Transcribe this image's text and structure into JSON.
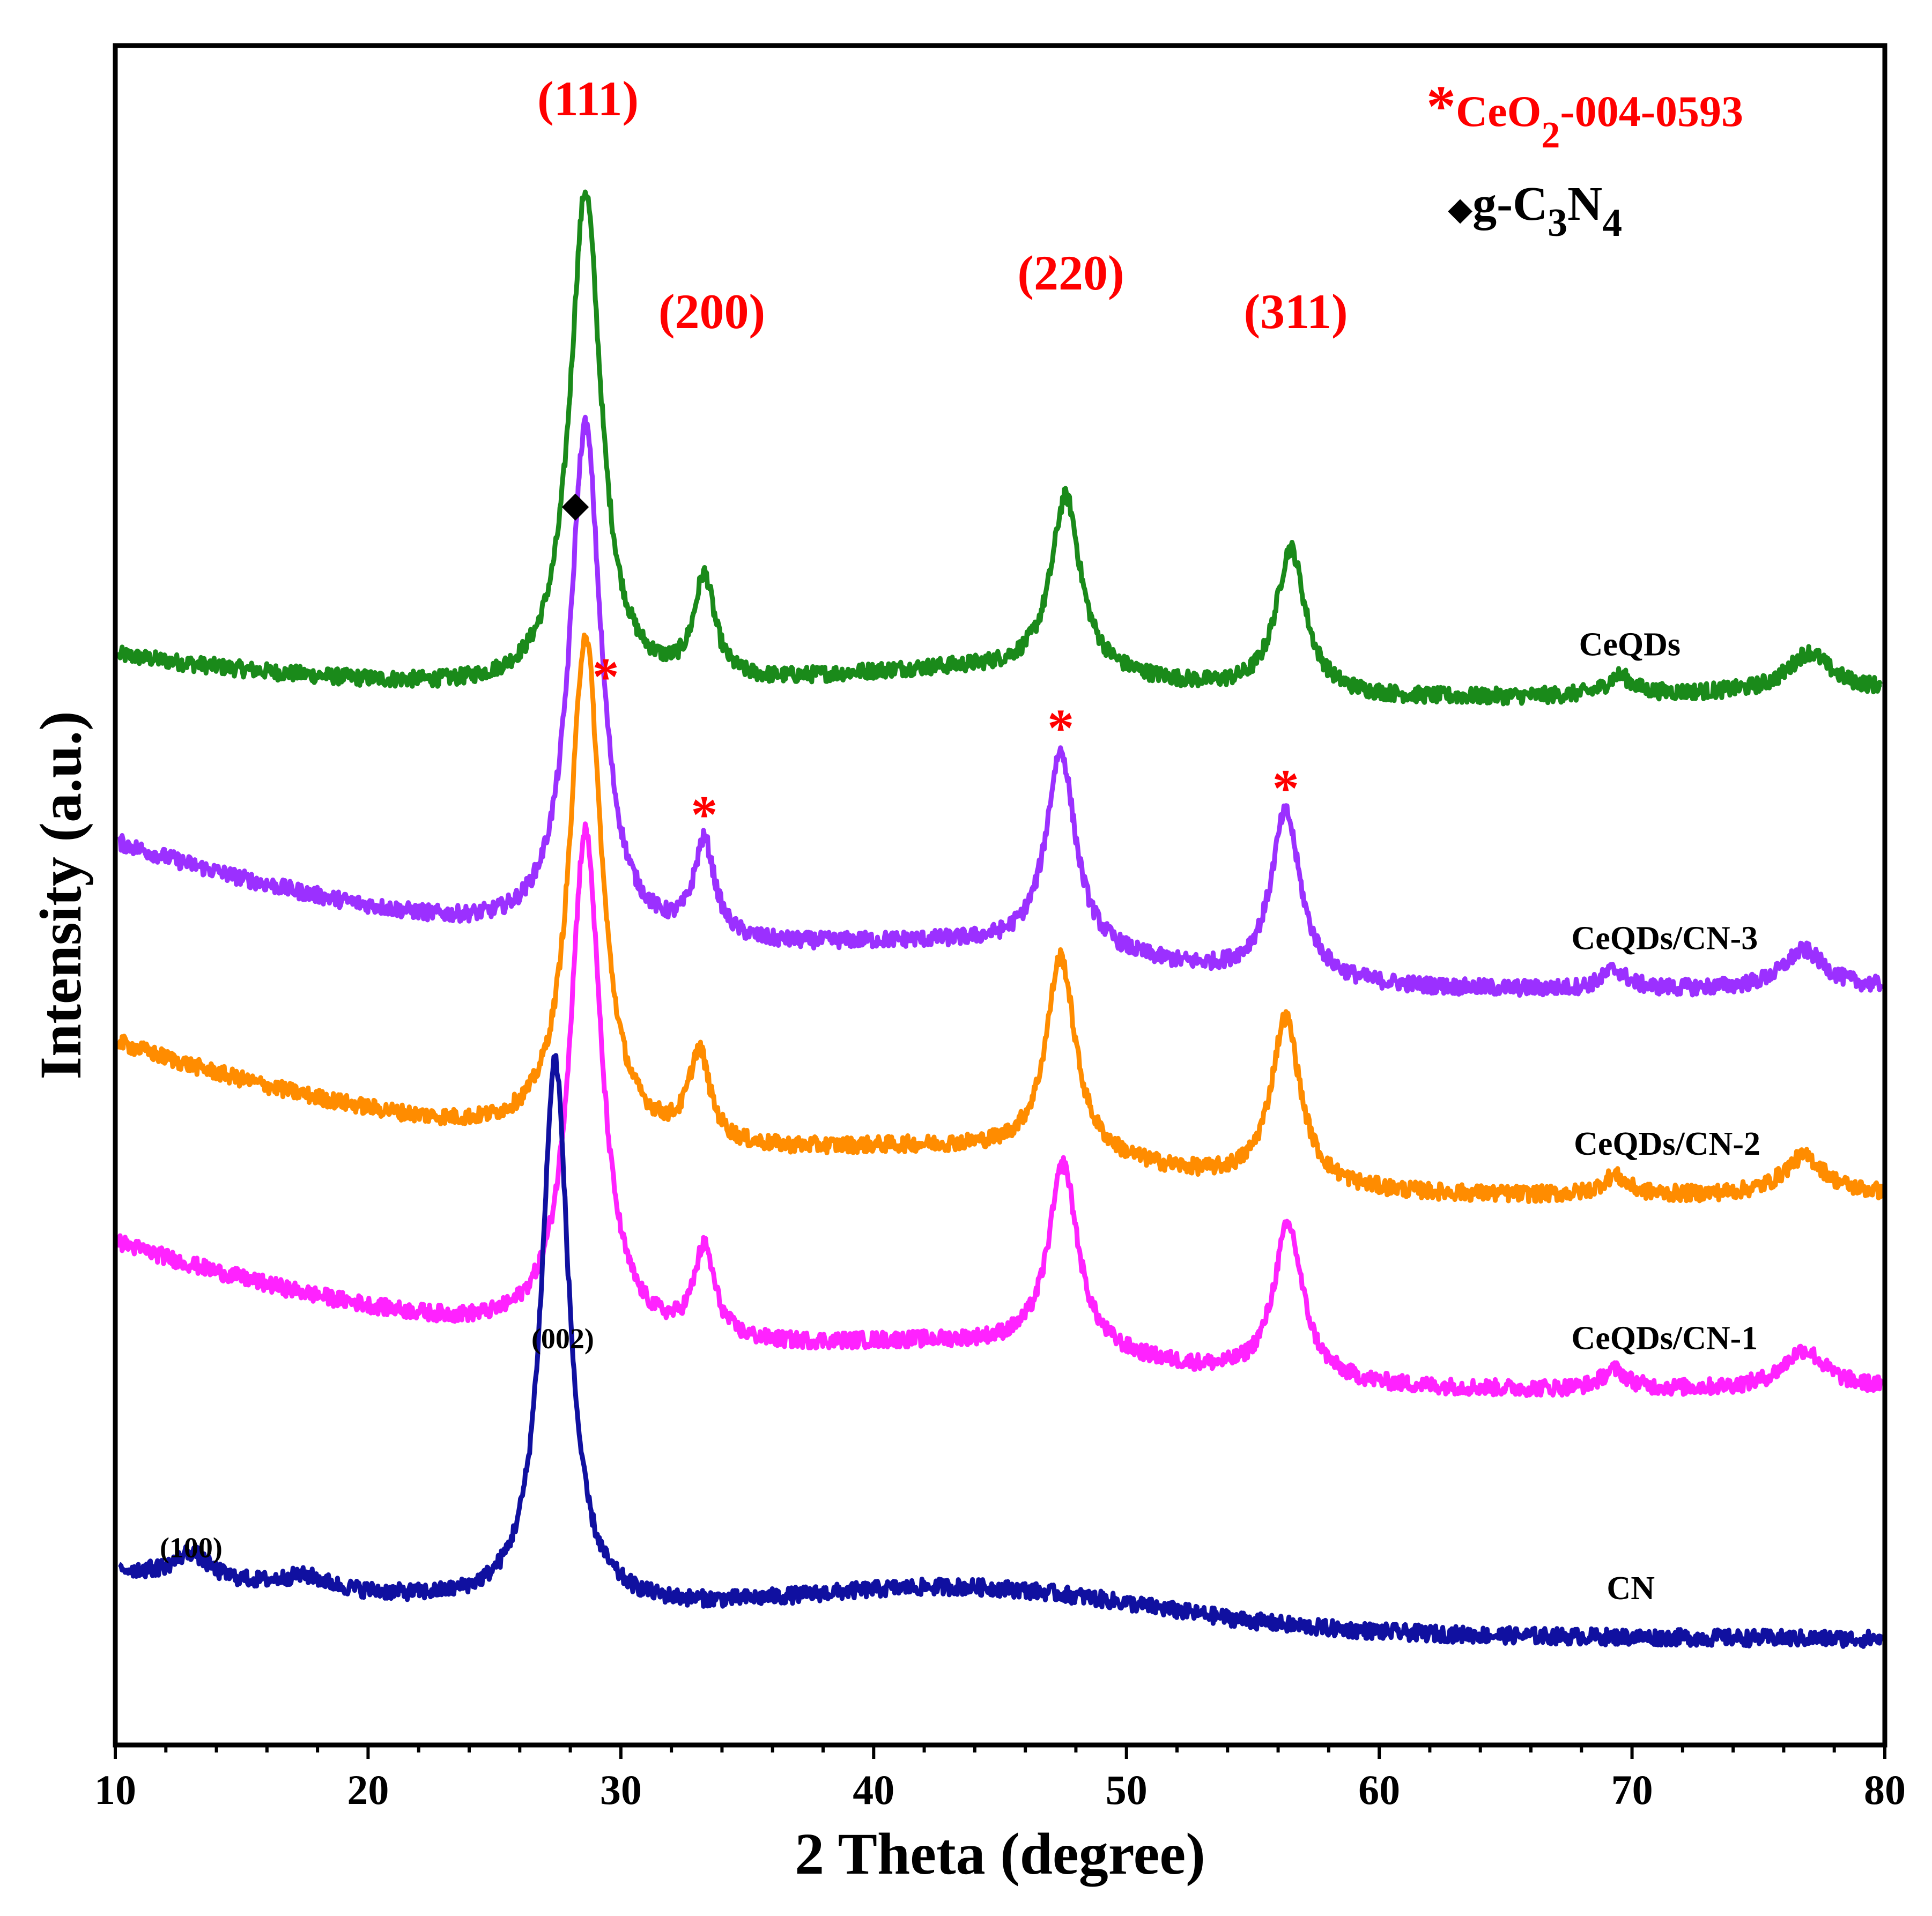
{
  "chart_data": {
    "type": "line",
    "title": "",
    "xlabel": "2 Theta (degree)",
    "ylabel": "Intensity (a.u.)",
    "xlim": [
      10,
      80
    ],
    "x_ticks": [
      "10",
      "20",
      "30",
      "40",
      "50",
      "60",
      "70",
      "80"
    ],
    "y_ticks": [],
    "grid": false,
    "legend": {
      "placement": "top-right",
      "entries": [
        {
          "marker": "*",
          "text": "CeO",
          "sub": "2",
          "suffix": "-004-0593",
          "color": "#ff0000"
        },
        {
          "marker": "◆",
          "text": "g-C",
          "sub": "3",
          "mid": "N",
          "sub2": "4",
          "color": "#000000"
        }
      ]
    },
    "series": [
      {
        "name": "CeQDs",
        "label": "CeQDs",
        "color": "#1a8a1a",
        "label_x": 67.9,
        "baseline": 2.76,
        "bg_start": 0.3,
        "bg_mid": 0.1,
        "bg_end": 0.18,
        "peaks": [
          [
            28.6,
            1.55,
            0.75
          ],
          [
            33.3,
            0.32,
            0.5
          ],
          [
            47.6,
            0.55,
            0.7
          ],
          [
            56.5,
            0.45,
            0.7
          ],
          [
            69.5,
            0.06,
            0.6
          ],
          [
            77.0,
            0.12,
            1.0
          ]
        ]
      },
      {
        "name": "CeQDs/CN-3",
        "label": "CeQDs/CN-3",
        "color": "#9b30ff",
        "label_x": 67.6,
        "baseline": 1.86,
        "bg_start": 0.62,
        "bg_mid": 0.1,
        "bg_end": 0.14,
        "peaks": [
          [
            28.6,
            1.6,
            0.75
          ],
          [
            33.3,
            0.3,
            0.5
          ],
          [
            47.4,
            0.62,
            0.7
          ],
          [
            56.3,
            0.52,
            0.7
          ],
          [
            69.3,
            0.06,
            0.6
          ],
          [
            76.8,
            0.12,
            1.0
          ]
        ]
      },
      {
        "name": "CeQDs/CN-2",
        "label": "CeQDs/CN-2",
        "color": "#ff8c00",
        "label_x": 67.7,
        "baseline": 1.22,
        "bg_start": 0.64,
        "bg_mid": 0.1,
        "bg_end": 0.14,
        "peaks": [
          [
            28.6,
            1.58,
            0.75
          ],
          [
            33.1,
            0.28,
            0.5
          ],
          [
            47.4,
            0.62,
            0.7
          ],
          [
            56.3,
            0.52,
            0.7
          ],
          [
            69.3,
            0.06,
            0.6
          ],
          [
            76.8,
            0.12,
            1.0
          ]
        ]
      },
      {
        "name": "CeQDs/CN-1",
        "label": "CeQDs/CN-1",
        "color": "#ff22ff",
        "label_x": 67.6,
        "baseline": 0.62,
        "bg_start": 0.62,
        "bg_mid": 0.1,
        "bg_end": 0.14,
        "peaks": [
          [
            28.6,
            1.58,
            0.75
          ],
          [
            33.3,
            0.28,
            0.5
          ],
          [
            47.5,
            0.58,
            0.7
          ],
          [
            56.4,
            0.48,
            0.7
          ],
          [
            69.3,
            0.06,
            0.6
          ],
          [
            76.8,
            0.12,
            1.0
          ]
        ]
      },
      {
        "name": "CN",
        "label": "CN",
        "color": "#1010a0",
        "label_x": 69.0,
        "baseline": 0.0,
        "bg_start": 0.22,
        "bg_mid": 0.12,
        "bg_end": 0.0,
        "peaks": [
          [
            13.0,
            0.08,
            0.8
          ],
          [
            27.4,
            1.7,
            0.65
          ],
          [
            17.5,
            0.04,
            1.2
          ]
        ]
      }
    ],
    "peak_labels": [
      {
        "text": "(111)",
        "x": 28.7,
        "color": "#ff0000",
        "size": "large",
        "row": 0
      },
      {
        "text": "(200)",
        "x": 33.6,
        "color": "#ff0000",
        "size": "large",
        "row": 1
      },
      {
        "text": "(220)",
        "x": 47.8,
        "color": "#ff0000",
        "size": "large",
        "row": 2
      },
      {
        "text": "(311)",
        "x": 56.7,
        "color": "#ff0000",
        "size": "large",
        "row": 1
      },
      {
        "text": "(002)",
        "x": 27.7,
        "color": "#000000",
        "size": "small",
        "row": 3
      },
      {
        "text": "(100)",
        "x": 13.0,
        "color": "#000000",
        "size": "small",
        "row": 4
      }
    ],
    "markers": [
      {
        "symbol": "◆",
        "x": 28.2,
        "series": "CeQDs/CN-3",
        "color": "#000000"
      },
      {
        "symbol": "*",
        "x": 29.4,
        "series": "CeQDs/CN-3",
        "color": "#ff0000"
      },
      {
        "symbol": "*",
        "x": 33.3,
        "series": "CeQDs/CN-3",
        "color": "#ff0000"
      },
      {
        "symbol": "*",
        "x": 47.4,
        "series": "CeQDs/CN-3",
        "color": "#ff0000"
      },
      {
        "symbol": "*",
        "x": 56.3,
        "series": "CeQDs/CN-3",
        "color": "#ff0000"
      }
    ]
  }
}
